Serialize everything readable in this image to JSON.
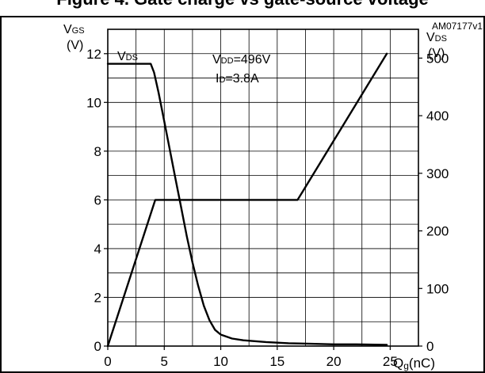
{
  "figure": {
    "banner": "Figure 4. Gate charge vs gate-source voltage",
    "code": "AM07177v1"
  },
  "chart_data": {
    "type": "line",
    "x": {
      "label": "Qg(nC)",
      "min": 0,
      "max": 27.5,
      "ticks": [
        0,
        5,
        10,
        15,
        20,
        25
      ],
      "tick_labels": [
        "0",
        "5",
        "10",
        "15",
        "20",
        "25"
      ]
    },
    "y_left": {
      "label": "VGS (V)",
      "min": 0,
      "max": 13,
      "ticks": [
        0,
        2,
        4,
        6,
        8,
        10,
        12
      ],
      "tick_labels": [
        "0",
        "2",
        "4",
        "6",
        "8",
        "10",
        "12"
      ]
    },
    "y_right": {
      "label": "VDS (V)",
      "min": 0,
      "max": 550,
      "ticks": [
        0,
        100,
        200,
        300,
        400,
        500
      ],
      "tick_labels": [
        "0",
        "100",
        "200",
        "300",
        "400",
        "500"
      ]
    },
    "grid": true,
    "annotations": [
      "VDS",
      "VDD=496V",
      "ID=3.8A"
    ],
    "series": [
      {
        "name": "VGS",
        "axis": "left",
        "points": [
          [
            0,
            0
          ],
          [
            4.2,
            6
          ],
          [
            16.8,
            6
          ],
          [
            24.7,
            12
          ]
        ]
      },
      {
        "name": "VDS",
        "axis": "right",
        "points": [
          [
            0,
            490
          ],
          [
            3.8,
            490
          ],
          [
            4.1,
            475
          ],
          [
            4.5,
            440
          ],
          [
            5.0,
            390
          ],
          [
            5.5,
            340
          ],
          [
            6.0,
            290
          ],
          [
            6.5,
            240
          ],
          [
            7.0,
            190
          ],
          [
            7.5,
            145
          ],
          [
            8.0,
            105
          ],
          [
            8.5,
            70
          ],
          [
            9.0,
            45
          ],
          [
            9.5,
            28
          ],
          [
            10.0,
            20
          ],
          [
            11.0,
            13
          ],
          [
            12.0,
            10
          ],
          [
            14.0,
            7
          ],
          [
            16.0,
            5
          ],
          [
            18.0,
            4
          ],
          [
            20.0,
            3
          ],
          [
            22.0,
            3
          ],
          [
            24.7,
            2
          ]
        ]
      }
    ]
  }
}
